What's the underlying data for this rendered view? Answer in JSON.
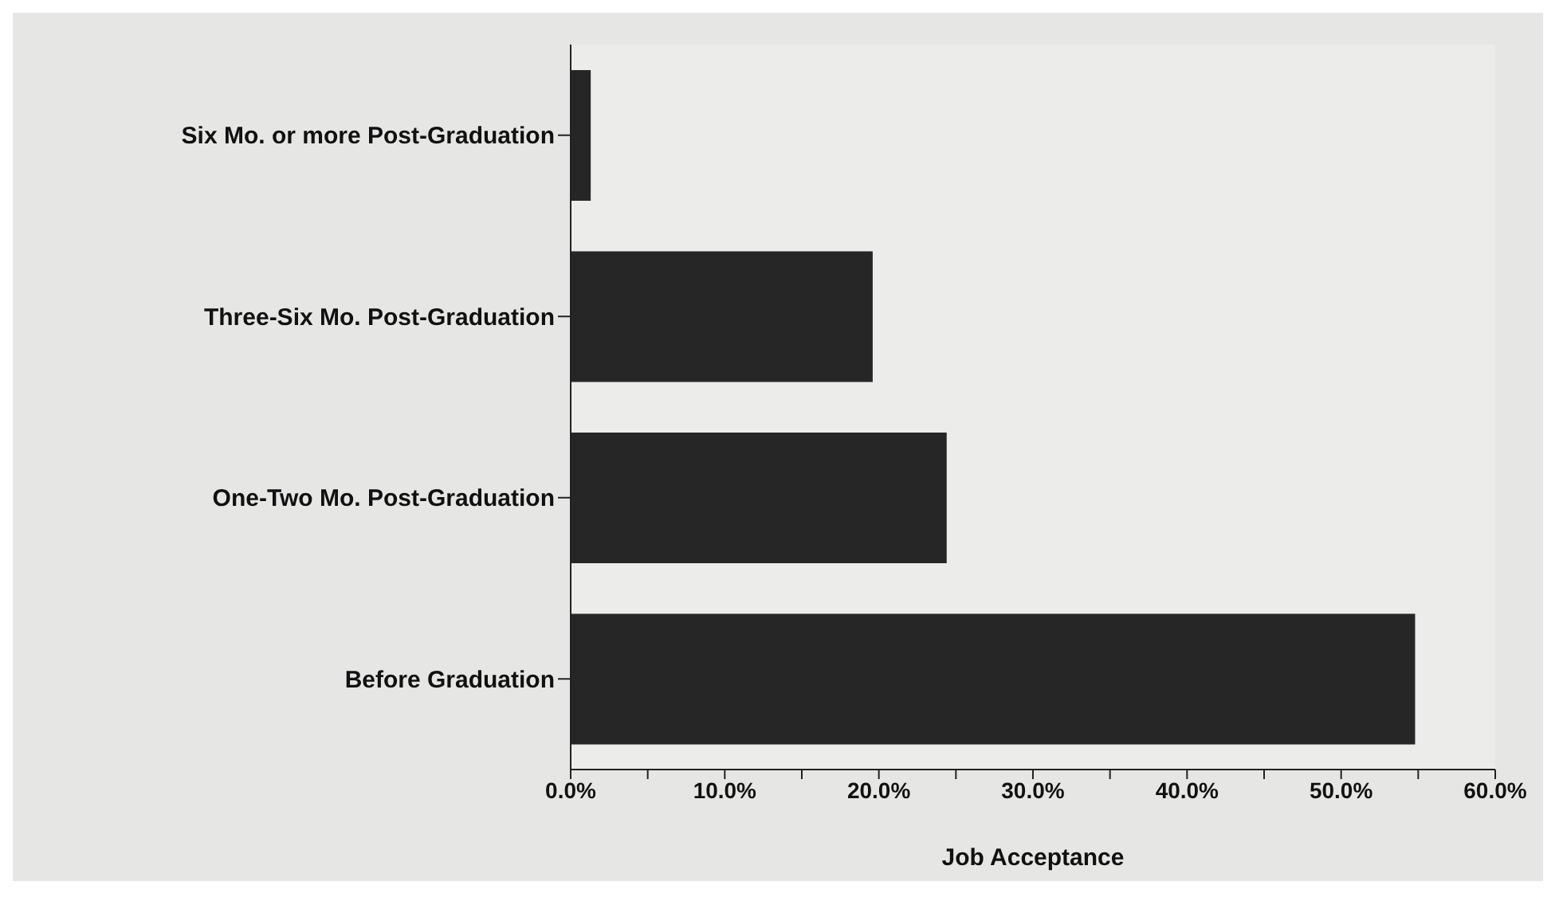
{
  "chart_data": {
    "type": "bar",
    "orientation": "horizontal",
    "xlabel": "Job Acceptance",
    "categories": [
      "Six Mo. or more Post-Graduation",
      "Three-Six Mo. Post-Graduation",
      "One-Two Mo. Post-Graduation",
      "Before Graduation"
    ],
    "values": [
      1.3,
      19.6,
      24.4,
      54.8
    ],
    "color": "#262626",
    "xlim": [
      0,
      60
    ],
    "xticks": [
      {
        "value": 0,
        "label": "0.0%"
      },
      {
        "value": 5,
        "label": null
      },
      {
        "value": 10,
        "label": "10.0%"
      },
      {
        "value": 15,
        "label": null
      },
      {
        "value": 20,
        "label": "20.0%"
      },
      {
        "value": 25,
        "label": null
      },
      {
        "value": 30,
        "label": "30.0%"
      },
      {
        "value": 35,
        "label": null
      },
      {
        "value": 40,
        "label": "40.0%"
      },
      {
        "value": 45,
        "label": null
      },
      {
        "value": 50,
        "label": "50.0%"
      },
      {
        "value": 55,
        "label": null
      },
      {
        "value": 60,
        "label": "60.0%"
      }
    ],
    "grid": false,
    "legend": false
  }
}
